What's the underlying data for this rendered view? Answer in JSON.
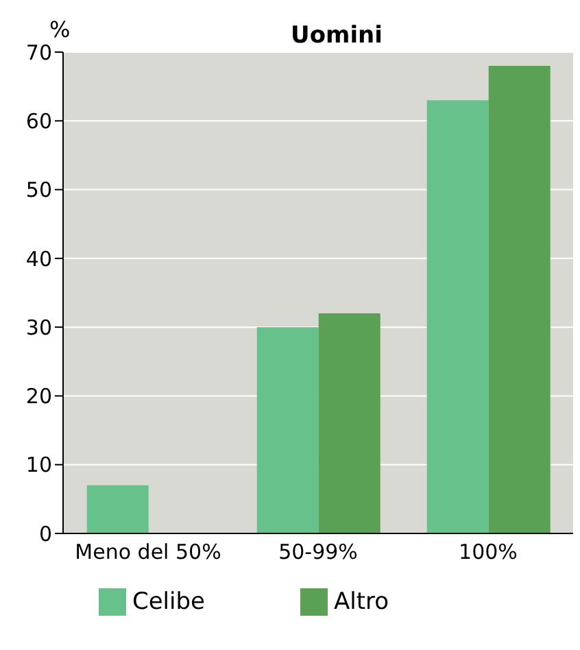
{
  "chart_data": {
    "type": "bar",
    "title": "Uomini",
    "ylabel": "%",
    "categories": [
      "Meno del 50%",
      "50-99%",
      "100%"
    ],
    "series": [
      {
        "name": "Celibe",
        "color": "#66c28a",
        "values": [
          7,
          30,
          63
        ]
      },
      {
        "name": "Altro",
        "color": "#5aa055",
        "values": [
          0,
          32,
          68
        ]
      }
    ],
    "ylim": [
      0,
      70
    ],
    "yticks": [
      0,
      10,
      20,
      30,
      40,
      50,
      60,
      70
    ],
    "grid": "y",
    "legend": "bottom"
  }
}
